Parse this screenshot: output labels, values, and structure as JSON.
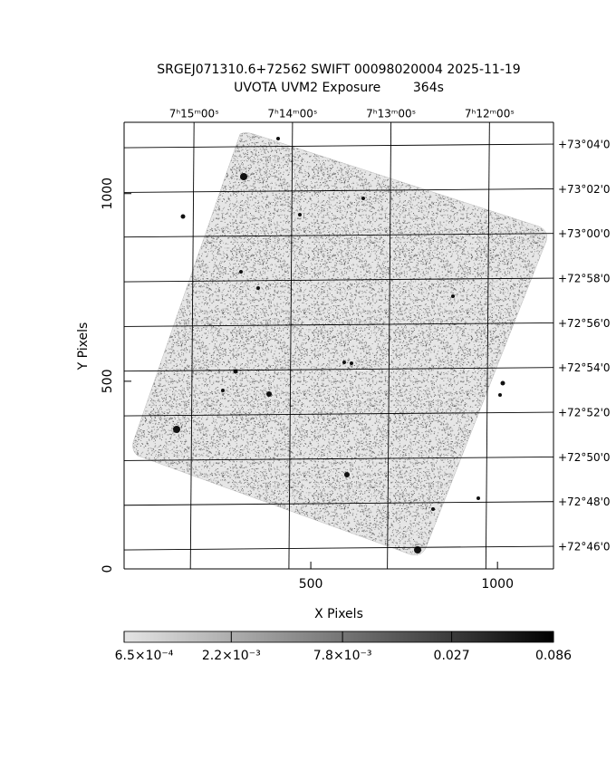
{
  "chart_data": {
    "type": "image",
    "title": "SRGEJ071310.6+72562 SWIFT 00098020004 2025-11-19",
    "subtitle": "UVOTA UVM2 Exposure        364s",
    "xlabel": "X Pixels",
    "ylabel": "Y Pixels",
    "xlim": [
      0,
      1150
    ],
    "xticks": [
      500,
      1000
    ],
    "ylim": [
      0,
      1190
    ],
    "yticks": [
      0,
      500,
      1000
    ],
    "x2lim": [
      435.71,
      431.35
    ],
    "x2ticks": [
      {
        "value": 435,
        "label": "7ʰ15ᵐ00ˢ"
      },
      {
        "value": 434,
        "label": "7ʰ14ᵐ00ˢ"
      },
      {
        "value": 433,
        "label": "7ʰ13ᵐ00ˢ"
      },
      {
        "value": 432,
        "label": "7ʰ12ᵐ00ˢ"
      }
    ],
    "y2lim": [
      72.7505,
      73.0836
    ],
    "y2ticks": [
      {
        "value": 73.0667,
        "label": "+73°04'0"
      },
      {
        "value": 73.0333,
        "label": "+73°02'0"
      },
      {
        "value": 73.0,
        "label": "+73°00'0"
      },
      {
        "value": 72.9667,
        "label": "+72°58'0"
      },
      {
        "value": 72.9333,
        "label": "+72°56'0"
      },
      {
        "value": 72.9,
        "label": "+72°54'0"
      },
      {
        "value": 72.8667,
        "label": "+72°52'0"
      },
      {
        "value": 72.8333,
        "label": "+72°50'0"
      },
      {
        "value": 72.8,
        "label": "+72°48'0"
      },
      {
        "value": 72.7667,
        "label": "+72°46'0"
      }
    ],
    "colorbar": {
      "scale": "log",
      "lim": [
        0.00065,
        0.086
      ],
      "ticks": [
        {
          "value": 0.00065,
          "label": "6.5×10⁻⁴"
        },
        {
          "value": 0.0022,
          "label": "2.2×10⁻³"
        },
        {
          "value": 0.0078,
          "label": "7.8×10⁻³"
        },
        0.027,
        0.086
      ]
    },
    "grid": true
  }
}
